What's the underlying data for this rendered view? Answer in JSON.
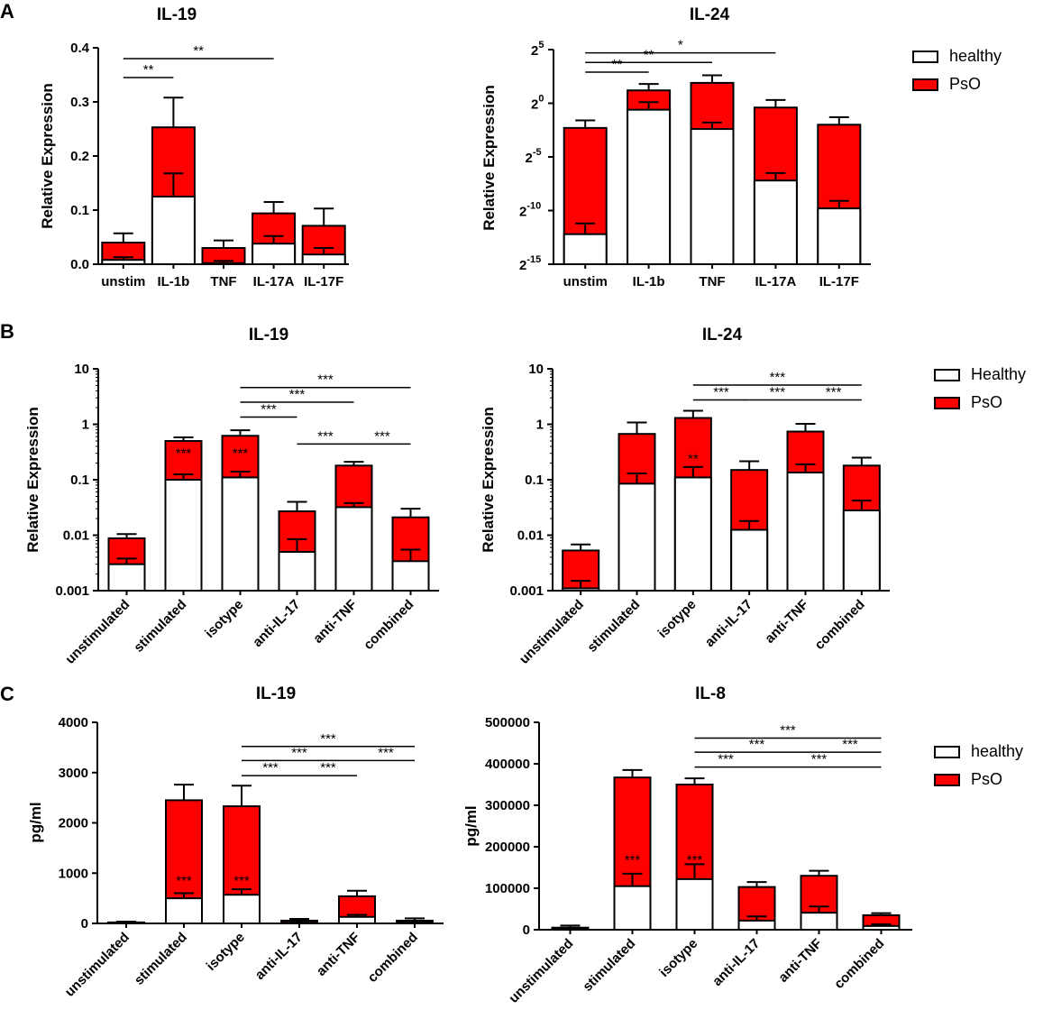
{
  "panels": [
    {
      "letter": "A"
    },
    {
      "letter": "B"
    },
    {
      "letter": "C"
    }
  ],
  "colors": {
    "healthy": "#ffffff",
    "pso": "#ff0000",
    "stroke": "#000000"
  },
  "chart_data": [
    {
      "id": "A1",
      "panel": "A",
      "type": "bar",
      "stacked": true,
      "scale": "linear",
      "title": "IL-19",
      "ylabel": "Relative Expression",
      "categories": [
        "unstim",
        "IL-1b",
        "TNF",
        "IL-17A",
        "IL-17F"
      ],
      "ticks": [
        {
          "v": 0,
          "label": "0.0"
        },
        {
          "v": 0.1,
          "label": "0.1"
        },
        {
          "v": 0.2,
          "label": "0.2"
        },
        {
          "v": 0.3,
          "label": "0.3"
        },
        {
          "v": 0.4,
          "label": "0.4"
        }
      ],
      "ylim": [
        0,
        0.4
      ],
      "series": [
        {
          "name": "healthy",
          "values": [
            0.008,
            0.125,
            0.002,
            0.038,
            0.018
          ],
          "error_top": [
            0.013,
            0.168,
            0.006,
            0.052,
            0.03
          ]
        },
        {
          "name": "PsO",
          "values": [
            0.04,
            0.253,
            0.03,
            0.094,
            0.071
          ],
          "error_top": [
            0.057,
            0.308,
            0.044,
            0.115,
            0.103
          ]
        }
      ],
      "significance": [
        {
          "from": 0,
          "to": 1,
          "label": "**",
          "y": 0.345
        },
        {
          "from": 0,
          "to": 3,
          "label": "**",
          "y": 0.38
        }
      ]
    },
    {
      "id": "A2",
      "panel": "A",
      "type": "bar",
      "stacked": true,
      "scale": "log2",
      "title": "IL-24",
      "ylabel": "Relative Expression",
      "categories": [
        "unstim",
        "IL-1b",
        "TNF",
        "IL-17A",
        "IL-17F"
      ],
      "ticks": [
        {
          "v": -15,
          "base": "2",
          "exp": "-15"
        },
        {
          "v": -10,
          "base": "2",
          "exp": "-10"
        },
        {
          "v": -5,
          "base": "2",
          "exp": "-5"
        },
        {
          "v": 0,
          "base": "2",
          "exp": "0"
        },
        {
          "v": 5,
          "base": "2",
          "exp": "5"
        }
      ],
      "ylim": [
        -15,
        5
      ],
      "series": [
        {
          "name": "healthy",
          "values": [
            -12.2,
            -0.6,
            -2.4,
            -7.2,
            -9.8
          ],
          "error_top": [
            -11.2,
            0.1,
            -1.8,
            -6.5,
            -9.1
          ]
        },
        {
          "name": "PsO",
          "values": [
            -2.3,
            1.2,
            1.9,
            -0.4,
            -2.0
          ],
          "error_top": [
            -1.6,
            1.8,
            2.6,
            0.3,
            -1.3
          ]
        }
      ],
      "significance": [
        {
          "from": 0,
          "to": 1,
          "label": "**",
          "y": 2.9
        },
        {
          "from": 0,
          "to": 2,
          "label": "**",
          "y": 3.8
        },
        {
          "from": 0,
          "to": 3,
          "label": "*",
          "y": 4.7
        }
      ]
    },
    {
      "id": "B1",
      "panel": "B",
      "type": "bar",
      "stacked": true,
      "scale": "log10",
      "title": "IL-19",
      "ylabel": "Relative Expression",
      "categories": [
        "unstimulated",
        "stimulated",
        "isotype",
        "anti-IL-17",
        "anti-TNF",
        "combined"
      ],
      "ticks": [
        {
          "v": 0.001,
          "label": "0.001"
        },
        {
          "v": 0.01,
          "label": "0.01"
        },
        {
          "v": 0.1,
          "label": "0.1"
        },
        {
          "v": 1,
          "label": "1"
        },
        {
          "v": 10,
          "label": "10"
        }
      ],
      "ylim": [
        0.001,
        10
      ],
      "series": [
        {
          "name": "Healthy",
          "values": [
            0.003,
            0.1,
            0.11,
            0.005,
            0.032,
            0.0034
          ],
          "error_top": [
            0.0038,
            0.125,
            0.14,
            0.0085,
            0.038,
            0.0055
          ]
        },
        {
          "name": "PsO",
          "values": [
            0.0088,
            0.5,
            0.62,
            0.027,
            0.18,
            0.021
          ],
          "error_top": [
            0.0105,
            0.58,
            0.78,
            0.04,
            0.21,
            0.03
          ]
        }
      ],
      "bar_labels": [
        {
          "index": 1,
          "label": "***",
          "value": 0.3
        },
        {
          "index": 2,
          "label": "***",
          "value": 0.3
        }
      ],
      "significance": [
        {
          "from": 2,
          "to": 3,
          "label": "***",
          "y": 1.35
        },
        {
          "from": 3,
          "to": 4,
          "label": "***",
          "y": 0.44
        },
        {
          "from": 4,
          "to": 5,
          "label": "***",
          "y": 0.44
        },
        {
          "from": 2,
          "to": 4,
          "label": "***",
          "y": 2.5
        },
        {
          "from": 2,
          "to": 5,
          "label": "***",
          "y": 4.6
        }
      ]
    },
    {
      "id": "B2",
      "panel": "B",
      "type": "bar",
      "stacked": true,
      "scale": "log10",
      "title": "IL-24",
      "ylabel": "Relative Expression",
      "categories": [
        "unstimulated",
        "stimulated",
        "isotype",
        "anti-IL-17",
        "anti-TNF",
        "combined"
      ],
      "ticks": [
        {
          "v": 0.001,
          "label": "0.001"
        },
        {
          "v": 0.01,
          "label": "0.01"
        },
        {
          "v": 0.1,
          "label": "0.1"
        },
        {
          "v": 1,
          "label": "1"
        },
        {
          "v": 10,
          "label": "10"
        }
      ],
      "ylim": [
        0.001,
        10
      ],
      "series": [
        {
          "name": "Healthy",
          "values": [
            0.0011,
            0.085,
            0.11,
            0.0125,
            0.135,
            0.028
          ],
          "error_top": [
            0.0015,
            0.13,
            0.17,
            0.018,
            0.19,
            0.042
          ]
        },
        {
          "name": "PsO",
          "values": [
            0.0053,
            0.67,
            1.3,
            0.15,
            0.74,
            0.18
          ],
          "error_top": [
            0.0068,
            1.08,
            1.75,
            0.215,
            1.02,
            0.25
          ]
        }
      ],
      "bar_labels": [
        {
          "index": 2,
          "label": "**",
          "value": 0.24
        }
      ],
      "significance": [
        {
          "from": 2,
          "to": 3,
          "label": "***",
          "y": 2.75
        },
        {
          "from": 3,
          "to": 4,
          "label": "***",
          "y": 2.75
        },
        {
          "from": 4,
          "to": 5,
          "label": "***",
          "y": 2.75
        },
        {
          "from": 2,
          "to": 5,
          "label": "***",
          "y": 5.1
        }
      ]
    },
    {
      "id": "C1",
      "panel": "C",
      "type": "bar",
      "stacked": true,
      "scale": "linear",
      "title": "IL-19",
      "ylabel": "pg/ml",
      "categories": [
        "unstimulated",
        "stimulated",
        "isotype",
        "anti-IL-17",
        "anti-TNF",
        "combined"
      ],
      "ticks": [
        {
          "v": 0,
          "label": "0"
        },
        {
          "v": 1000,
          "label": "1000"
        },
        {
          "v": 2000,
          "label": "2000"
        },
        {
          "v": 3000,
          "label": "3000"
        },
        {
          "v": 4000,
          "label": "4000"
        }
      ],
      "ylim": [
        0,
        4000
      ],
      "series": [
        {
          "name": "healthy",
          "values": [
            5,
            500,
            570,
            15,
            130,
            20
          ],
          "error_top": [
            10,
            600,
            680,
            25,
            170,
            35
          ]
        },
        {
          "name": "PsO",
          "values": [
            20,
            2450,
            2330,
            55,
            540,
            55
          ],
          "error_top": [
            35,
            2760,
            2740,
            90,
            650,
            100
          ]
        }
      ],
      "bar_labels": [
        {
          "index": 1,
          "label": "***",
          "value": 850
        },
        {
          "index": 2,
          "label": "***",
          "value": 850
        }
      ],
      "significance": [
        {
          "from": 2,
          "to": 3,
          "label": "***",
          "y": 2940
        },
        {
          "from": 3,
          "to": 4,
          "label": "***",
          "y": 2940
        },
        {
          "from": 2,
          "to": 4,
          "label": "***",
          "y": 3240
        },
        {
          "from": 2,
          "to": 5,
          "label": "***",
          "y": 3520
        },
        {
          "from": 4,
          "to": 5,
          "label": "***",
          "y": 3240
        }
      ]
    },
    {
      "id": "C2",
      "panel": "C",
      "type": "bar",
      "stacked": true,
      "scale": "linear",
      "title": "IL-8",
      "ylabel": "pg/ml",
      "categories": [
        "unstimulated",
        "stimulated",
        "isotype",
        "anti-IL-17",
        "anti-TNF",
        "combined"
      ],
      "ticks": [
        {
          "v": 0,
          "label": "0"
        },
        {
          "v": 100000,
          "label": "100000"
        },
        {
          "v": 200000,
          "label": "200000"
        },
        {
          "v": 300000,
          "label": "300000"
        },
        {
          "v": 400000,
          "label": "400000"
        },
        {
          "v": 500000,
          "label": "500000"
        }
      ],
      "ylim": [
        0,
        500000
      ],
      "series": [
        {
          "name": "healthy",
          "values": [
            2000,
            105000,
            122000,
            22000,
            41000,
            9000
          ],
          "error_top": [
            4000,
            135000,
            158000,
            32000,
            56000,
            13000
          ]
        },
        {
          "name": "PsO",
          "values": [
            5000,
            367000,
            350000,
            103000,
            130000,
            35000
          ],
          "error_top": [
            10000,
            385000,
            365000,
            115000,
            142000,
            40000
          ]
        }
      ],
      "bar_labels": [
        {
          "index": 1,
          "label": "***",
          "value": 168000
        },
        {
          "index": 2,
          "label": "***",
          "value": 168000
        }
      ],
      "significance": [
        {
          "from": 2,
          "to": 3,
          "label": "***",
          "y": 392000
        },
        {
          "from": 3,
          "to": 5,
          "label": "***",
          "y": 392000
        },
        {
          "from": 2,
          "to": 4,
          "label": "***",
          "y": 428000
        },
        {
          "from": 4,
          "to": 5,
          "label": "***",
          "y": 428000
        },
        {
          "from": 2,
          "to": 5,
          "label": "***",
          "y": 462000
        }
      ]
    }
  ],
  "legends": [
    {
      "panel": "A",
      "items": [
        {
          "label": "healthy",
          "series": 0
        },
        {
          "label": "PsO",
          "series": 1
        }
      ]
    },
    {
      "panel": "B",
      "items": [
        {
          "label": "Healthy",
          "series": 0
        },
        {
          "label": "PsO",
          "series": 1
        }
      ]
    },
    {
      "panel": "C",
      "items": [
        {
          "label": "healthy",
          "series": 0
        },
        {
          "label": "PsO",
          "series": 1
        }
      ]
    }
  ]
}
